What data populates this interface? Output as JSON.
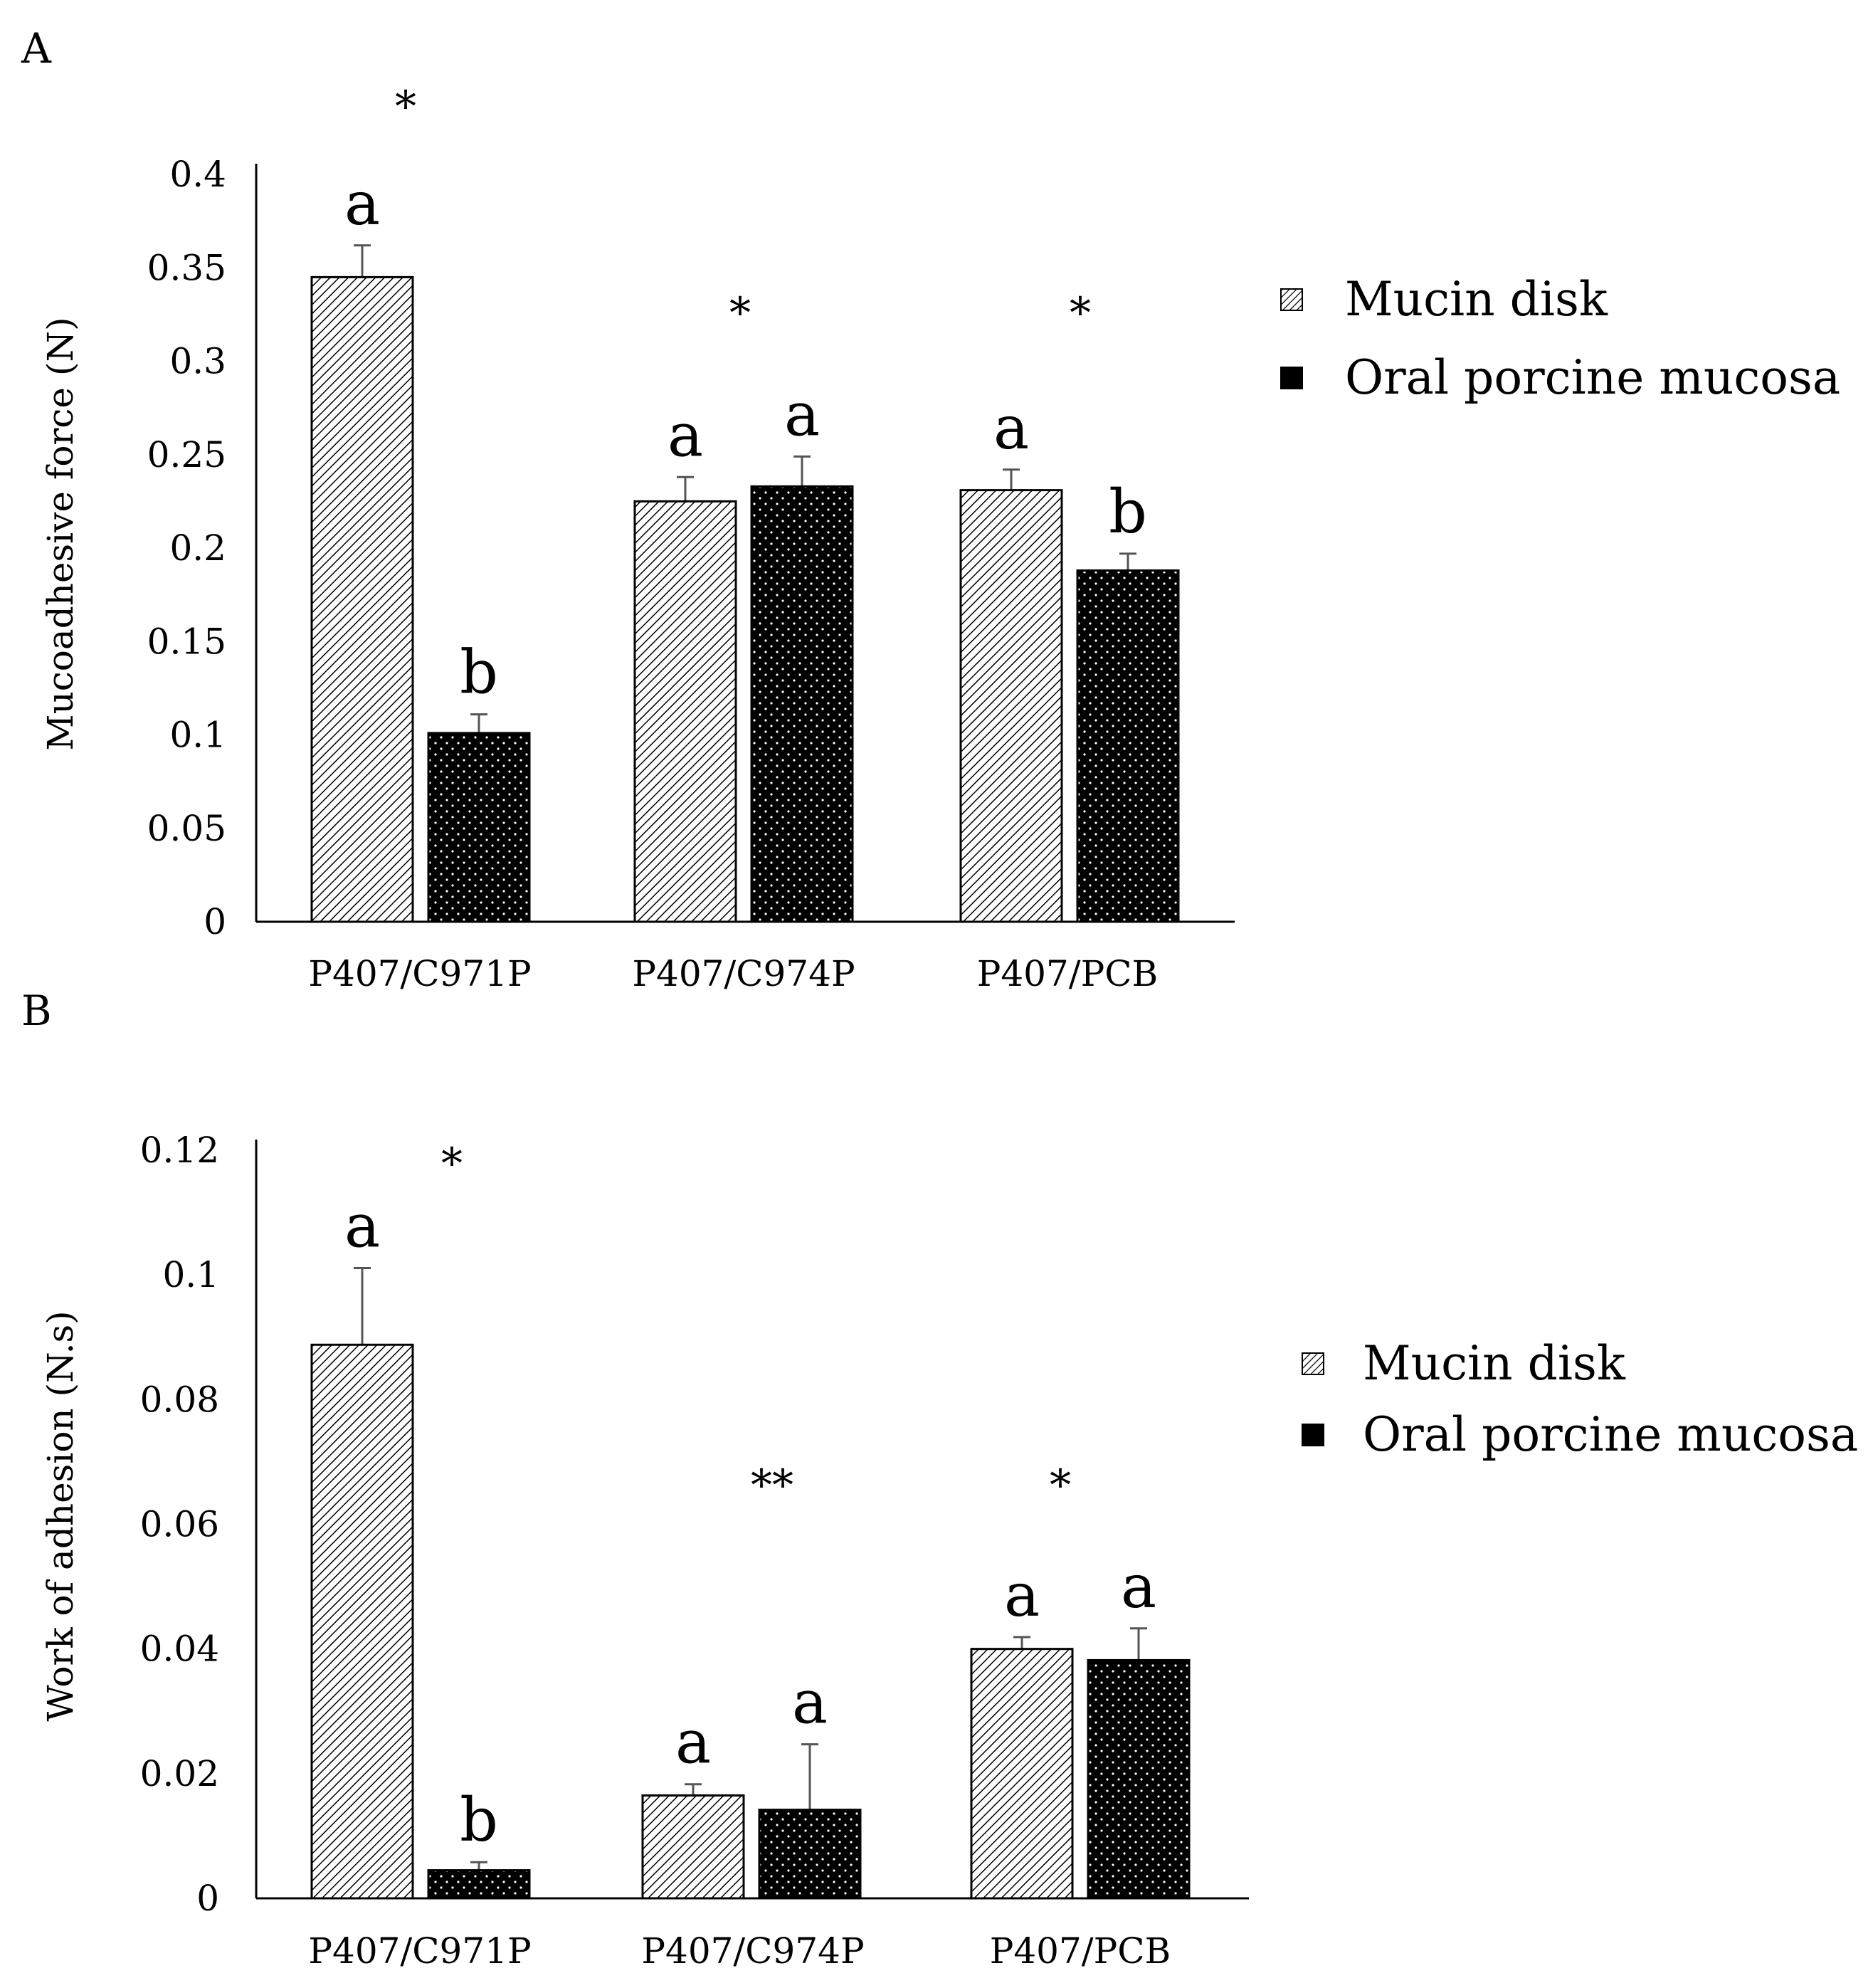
{
  "colors": {
    "background": "#ffffff",
    "ink": "#000000",
    "error_bar": "#555555"
  },
  "legend": {
    "series": [
      {
        "name": "Mucin disk",
        "pattern": "diagonal-hatch"
      },
      {
        "name": "Oral porcine mucosa",
        "pattern": "black-dotted"
      }
    ]
  },
  "chart_data": [
    {
      "panel": "A",
      "type": "bar",
      "title": "",
      "xlabel": "",
      "ylabel": "Mucoadhesive force (N)",
      "ylim": [
        0,
        0.4
      ],
      "yticks": [
        0,
        0.05,
        0.1,
        0.15,
        0.2,
        0.25,
        0.3,
        0.35,
        0.4
      ],
      "ytick_labels": [
        "0",
        "0.05",
        "0.1",
        "0.15",
        "0.2",
        "0.25",
        "0.3",
        "0.35",
        "0.4"
      ],
      "grid": false,
      "legend_position": "right",
      "categories": [
        "P407/C971P",
        "P407/C974P",
        "P407/PCB"
      ],
      "series": [
        {
          "name": "Mucin disk",
          "values": [
            0.345,
            0.225,
            0.231
          ],
          "errors": [
            0.017,
            0.013,
            0.011
          ],
          "letters": [
            "a",
            "a",
            "a"
          ]
        },
        {
          "name": "Oral porcine mucosa",
          "values": [
            0.101,
            0.233,
            0.188
          ],
          "errors": [
            0.01,
            0.016,
            0.009
          ],
          "letters": [
            "b",
            "a",
            "b"
          ]
        }
      ],
      "group_marks": [
        "*",
        "*",
        "*"
      ]
    },
    {
      "panel": "B",
      "type": "bar",
      "title": "",
      "xlabel": "",
      "ylabel": "Work of adhesion (N.s)",
      "ylim": [
        0,
        0.12
      ],
      "yticks": [
        0,
        0.02,
        0.04,
        0.06,
        0.08,
        0.1,
        0.12
      ],
      "ytick_labels": [
        "0",
        "0.02",
        "0.04",
        "0.06",
        "0.08",
        "0.1",
        "0.12"
      ],
      "grid": false,
      "legend_position": "right",
      "categories": [
        "P407/C971P",
        "P407/C974P",
        "P407/PCB"
      ],
      "series": [
        {
          "name": "Mucin disk",
          "values": [
            0.0888,
            0.0165,
            0.04
          ],
          "errors": [
            0.0123,
            0.0018,
            0.0019
          ],
          "letters": [
            "a",
            "a",
            "a"
          ]
        },
        {
          "name": "Oral porcine mucosa",
          "values": [
            0.0045,
            0.0142,
            0.0382
          ],
          "errors": [
            0.0013,
            0.0105,
            0.0051
          ],
          "letters": [
            "b",
            "a",
            "a"
          ]
        }
      ],
      "group_marks": [
        "*",
        "**",
        "*"
      ]
    }
  ]
}
